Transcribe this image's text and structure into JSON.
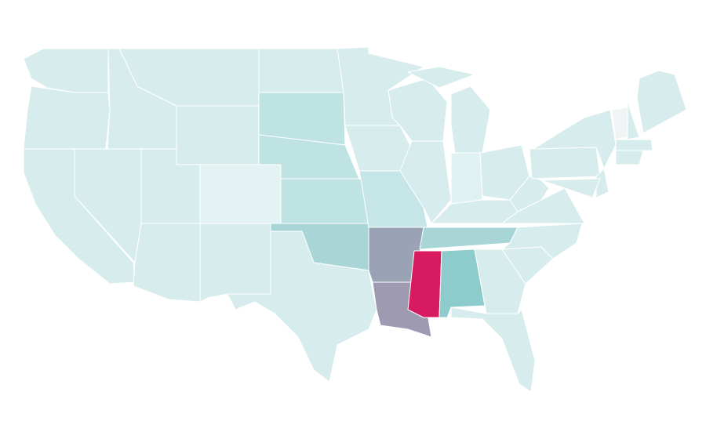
{
  "map": {
    "colors": [
      "#d7eced",
      "#bfe2e3",
      "#a8d6d7",
      "#8ecbcc",
      "#d81b60",
      "#99a3b5",
      "#9e9ab2",
      "#e3f3f3",
      "#f1f4f4",
      "#c6e5e6",
      "#e0f1f2"
    ]
  }
}
